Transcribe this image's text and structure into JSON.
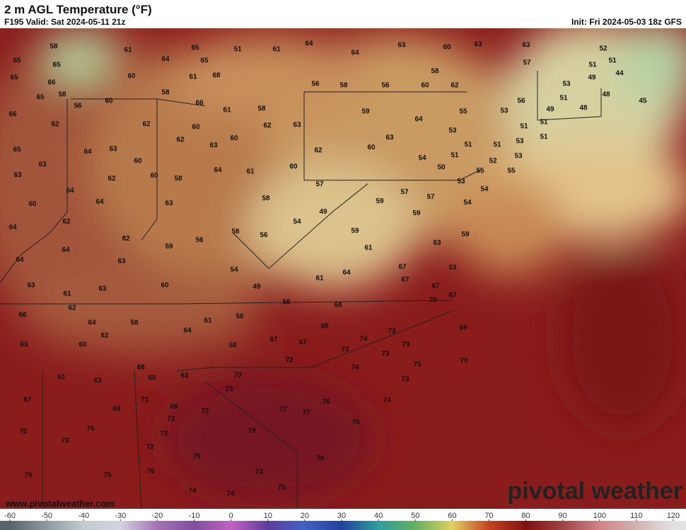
{
  "header": {
    "title": "2 m AGL Temperature (°F)",
    "valid": "F195 Valid: Sat 2024-05-11 21z",
    "init": "Init: Fri 2024-05-03 18z GFS"
  },
  "labels": [
    58,
    61,
    64,
    65,
    51,
    61,
    64,
    64,
    63,
    60,
    63,
    63,
    52,
    65,
    65,
    65,
    57,
    51,
    51,
    65,
    60,
    61,
    68,
    58,
    49,
    44,
    66,
    56,
    58,
    56,
    60,
    62,
    53,
    65,
    58,
    58,
    51,
    48,
    45,
    56,
    56,
    60,
    66,
    61,
    58,
    55,
    59,
    53,
    49,
    48,
    66,
    64,
    51,
    51,
    62,
    62,
    60,
    62,
    63,
    53,
    51,
    62,
    60,
    63,
    63,
    51,
    51,
    53,
    65,
    64,
    63,
    60,
    62,
    51,
    53,
    63,
    60,
    64,
    61,
    60,
    54,
    50,
    52,
    55,
    55,
    63,
    62,
    60,
    58,
    57,
    53,
    54,
    57,
    57,
    64,
    58,
    59,
    64,
    63,
    54,
    60,
    49,
    54,
    62,
    59,
    59,
    58,
    56,
    59,
    64,
    82,
    59,
    56,
    63,
    61,
    64,
    64,
    63,
    53,
    67,
    54,
    64,
    61,
    67,
    63,
    63,
    60,
    49,
    67,
    61,
    67,
    70,
    58,
    62,
    68,
    66,
    56,
    61,
    64,
    58,
    68,
    73,
    64,
    69,
    63,
    62,
    60,
    67,
    67,
    74,
    73,
    73,
    73,
    58,
    72,
    70,
    74,
    73,
    68,
    69,
    63,
    61,
    63,
    70,
    73,
    73,
    67,
    71,
    69,
    72,
    77,
    77,
    76,
    74,
    69,
    72,
    76,
    70,
    72,
    79,
    76,
    73,
    72,
    76,
    76,
    76,
    73,
    75,
    75,
    75,
    74,
    74
  ],
  "colorbar": {
    "ticks": [
      -60,
      -50,
      -40,
      -30,
      -20,
      -10,
      0,
      10,
      20,
      30,
      40,
      50,
      60,
      70,
      80,
      90,
      100,
      110,
      120
    ],
    "colors": [
      "#56656c",
      "#8c9aa0",
      "#c3cbcf",
      "#d3d2e2",
      "#a373b3",
      "#7f4f9f",
      "#c262c2",
      "#5e3e9e",
      "#4262c2",
      "#22429e",
      "#2e9e9e",
      "#62b062",
      "#e0d060",
      "#c44422",
      "#801010",
      "#a04444",
      "#d08484",
      "#d2b2b2",
      "#e2e2e2"
    ]
  },
  "watermark": {
    "url": "www.pivotalweather.com",
    "brand": "pivotal weather"
  }
}
